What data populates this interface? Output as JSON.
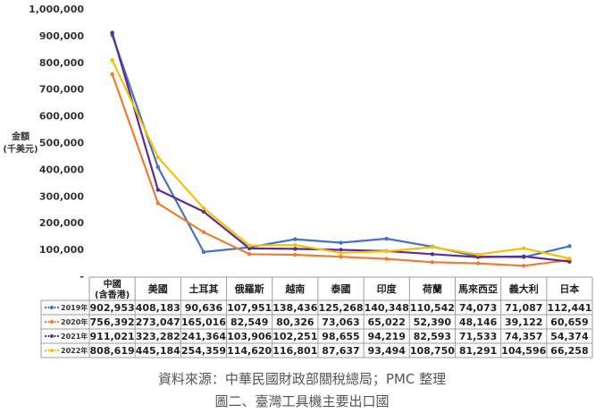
{
  "chart_data": {
    "type": "line",
    "title": "",
    "ylabel_lines": [
      "金額",
      "(千美元)"
    ],
    "xlabel": "",
    "ylim": [
      0,
      1000000
    ],
    "y_ticks": [
      "1,000,000",
      "900,000",
      "800,000",
      "700,000",
      "600,000",
      "500,000",
      "400,000",
      "300,000",
      "200,000",
      "100,000",
      "-"
    ],
    "categories": [
      "中國\n(含香港)",
      "美國",
      "土耳其",
      "俄羅斯",
      "越南",
      "泰國",
      "印度",
      "荷蘭",
      "馬來西亞",
      "義大利",
      "日本"
    ],
    "grid": false,
    "legend_placement": "data-table",
    "series": [
      {
        "name": "2019年",
        "color": "#4472c4",
        "values": [
          902953,
          408183,
          90636,
          107951,
          138436,
          125268,
          140348,
          110542,
          74073,
          71087,
          112441
        ],
        "display": [
          "902,953",
          "408,183",
          "90,636",
          "107,951",
          "138,436",
          "125,268",
          "140,348",
          "110,542",
          "74,073",
          "71,087",
          "112,441"
        ]
      },
      {
        "name": "2020年",
        "color": "#ed7d31",
        "values": [
          756392,
          273047,
          165016,
          82549,
          80326,
          73063,
          65022,
          52390,
          48146,
          39122,
          60659
        ],
        "display": [
          "756,392",
          "273,047",
          "165,016",
          "82,549",
          "80,326",
          "73,063",
          "65,022",
          "52,390",
          "48,146",
          "39,122",
          "60,659"
        ]
      },
      {
        "name": "2021年",
        "color": "#5b2c91",
        "values": [
          911021,
          323282,
          241364,
          103906,
          102251,
          98655,
          94219,
          82593,
          71533,
          74357,
          54374
        ],
        "display": [
          "911,021",
          "323,282",
          "241,364",
          "103,906",
          "102,251",
          "98,655",
          "94,219",
          "82,593",
          "71,533",
          "74,357",
          "54,374"
        ]
      },
      {
        "name": "2022年",
        "color": "#f5c200",
        "values": [
          808619,
          445184,
          254359,
          114620,
          116801,
          87637,
          93494,
          108750,
          81291,
          104596,
          66258
        ],
        "display": [
          "808,619",
          "445,184",
          "254,359",
          "114,620",
          "116,801",
          "87,637",
          "93,494",
          "108,750",
          "81,291",
          "104,596",
          "66,258"
        ]
      }
    ]
  },
  "footer": {
    "source": "資料來源：中華民國財政部關稅總局；PMC 整理",
    "figure_title": "圖二、臺灣工具機主要出口國"
  }
}
